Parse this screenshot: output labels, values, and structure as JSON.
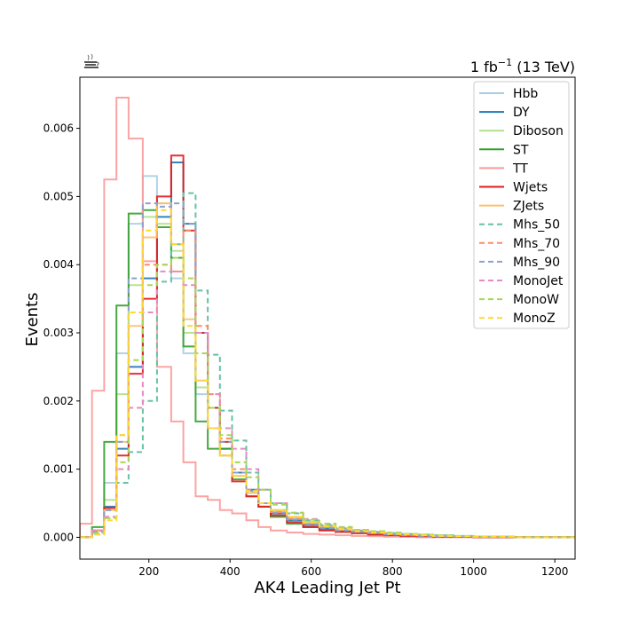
{
  "chart_data": {
    "type": "step-histogram",
    "xlabel": "AK4 Leading Jet Pt",
    "ylabel": "Events",
    "lumi_label": {
      "main": "1 fb",
      "sup": "−1",
      "tail": " (13 TeV)"
    },
    "logo_icon": "coffee-cup-icon",
    "xlim": [
      30,
      1250
    ],
    "ylim": [
      -0.00032,
      0.00675
    ],
    "xticks": [
      200,
      400,
      600,
      800,
      1000,
      1200
    ],
    "yticks": [
      0.0,
      0.001,
      0.002,
      0.003,
      0.004,
      0.005,
      0.006
    ],
    "ytick_labels": [
      "0.000",
      "0.001",
      "0.002",
      "0.003",
      "0.004",
      "0.005",
      "0.006"
    ],
    "legend_position": "top-right",
    "bin_edges": [
      30,
      60,
      90,
      120,
      150,
      185,
      220,
      255,
      285,
      315,
      345,
      375,
      405,
      440,
      470,
      500,
      540,
      580,
      620,
      660,
      700,
      740,
      780,
      820,
      860,
      900,
      950,
      1000,
      1100,
      1250
    ],
    "series": [
      {
        "name": "Hbb",
        "color": "#a6cee3",
        "dashed": false,
        "values": [
          0,
          0.0001,
          0.0008,
          0.0027,
          0.0046,
          0.0053,
          0.0049,
          0.0038,
          0.0027,
          0.0021,
          0.0016,
          0.0012,
          0.0009,
          0.00065,
          0.0005,
          0.00038,
          0.00028,
          0.0002,
          0.00015,
          0.00011,
          8e-05,
          6e-05,
          4e-05,
          3e-05,
          2e-05,
          1.5e-05,
          1e-05,
          5e-06,
          0
        ]
      },
      {
        "name": "DY",
        "color": "#1f78b4",
        "dashed": false,
        "values": [
          0,
          0.0001,
          0.00045,
          0.0013,
          0.0025,
          0.0038,
          0.0047,
          0.0055,
          0.0046,
          0.003,
          0.0019,
          0.0013,
          0.00095,
          0.0007,
          0.0005,
          0.00035,
          0.00025,
          0.00018,
          0.00013,
          0.0001,
          7e-05,
          5e-05,
          4e-05,
          3e-05,
          2e-05,
          1.5e-05,
          1e-05,
          5e-06,
          0
        ]
      },
      {
        "name": "Diboson",
        "color": "#b2df8a",
        "dashed": false,
        "values": [
          0,
          0.0001,
          0.00055,
          0.0021,
          0.0037,
          0.0047,
          0.0046,
          0.0042,
          0.003,
          0.0022,
          0.0016,
          0.0012,
          0.0009,
          0.00065,
          0.0005,
          0.0004,
          0.0003,
          0.00022,
          0.00016,
          0.00012,
          9e-05,
          7e-05,
          5e-05,
          4e-05,
          3e-05,
          2e-05,
          1.5e-05,
          1e-05,
          0
        ]
      },
      {
        "name": "ST",
        "color": "#33a02c",
        "dashed": false,
        "values": [
          0,
          0.00015,
          0.0014,
          0.0034,
          0.00475,
          0.0048,
          0.00455,
          0.0041,
          0.0028,
          0.0017,
          0.0013,
          0.0013,
          0.00085,
          0.0006,
          0.00045,
          0.0003,
          0.0002,
          0.00015,
          0.00011,
          8e-05,
          6e-05,
          4e-05,
          3e-05,
          2e-05,
          1.5e-05,
          1e-05,
          5e-06,
          0,
          0
        ]
      },
      {
        "name": "TT",
        "color": "#fb9a99",
        "dashed": false,
        "values": [
          0.0002,
          0.00215,
          0.00525,
          0.00645,
          0.00585,
          0.00405,
          0.0025,
          0.0017,
          0.0011,
          0.0006,
          0.00055,
          0.0004,
          0.00035,
          0.00025,
          0.00015,
          0.0001,
          7e-05,
          5e-05,
          4e-05,
          3e-05,
          2e-05,
          1.5e-05,
          1e-05,
          5e-06,
          0,
          0,
          0,
          0,
          0
        ]
      },
      {
        "name": "Wjets",
        "color": "#e31a1c",
        "dashed": false,
        "values": [
          0,
          0.0001,
          0.00043,
          0.0012,
          0.0024,
          0.0035,
          0.005,
          0.0056,
          0.0045,
          0.003,
          0.0019,
          0.0014,
          0.00082,
          0.0006,
          0.00045,
          0.00032,
          0.00022,
          0.00015,
          0.0001,
          8e-05,
          6e-05,
          4e-05,
          3e-05,
          2e-05,
          1.5e-05,
          1e-05,
          5e-06,
          0,
          0
        ]
      },
      {
        "name": "ZJets",
        "color": "#fdbf6f",
        "dashed": false,
        "values": [
          0,
          0.0001,
          0.0004,
          0.0014,
          0.0031,
          0.0044,
          0.0049,
          0.0043,
          0.0032,
          0.0023,
          0.0016,
          0.0012,
          0.0009,
          0.00065,
          0.0005,
          0.0004,
          0.0003,
          0.00023,
          0.00017,
          0.00013,
          0.0001,
          8e-05,
          6e-05,
          4e-05,
          3e-05,
          2e-05,
          1.5e-05,
          1e-05,
          0
        ]
      },
      {
        "name": "Mhs_50",
        "color": "#66c2a5",
        "dashed": true,
        "values": [
          0,
          5e-05,
          0.0003,
          0.0008,
          0.00125,
          0.002,
          0.00375,
          0.0043,
          0.00505,
          0.00362,
          0.00268,
          0.00186,
          0.00142,
          0.00095,
          0.0007,
          0.0005,
          0.00035,
          0.00025,
          0.00018,
          0.00013,
          0.0001,
          8e-05,
          6e-05,
          5e-05,
          4e-05,
          3e-05,
          2e-05,
          1e-05,
          0
        ]
      },
      {
        "name": "Mhs_70",
        "color": "#fc8d62",
        "dashed": true,
        "values": [
          0,
          8e-05,
          0.0004,
          0.0015,
          0.0033,
          0.004,
          0.004,
          0.0039,
          0.0045,
          0.0031,
          0.0021,
          0.00145,
          0.001,
          0.0007,
          0.0005,
          0.00037,
          0.00027,
          0.0002,
          0.00015,
          0.00011,
          8e-05,
          6e-05,
          5e-05,
          4e-05,
          3e-05,
          2e-05,
          1.5e-05,
          1e-05,
          0
        ]
      },
      {
        "name": "Mhs_90",
        "color": "#8da0cb",
        "dashed": true,
        "values": [
          0,
          8e-05,
          0.0004,
          0.0014,
          0.0038,
          0.0049,
          0.00485,
          0.0049,
          0.0046,
          0.003,
          0.0019,
          0.0014,
          0.00095,
          0.00068,
          0.0005,
          0.00036,
          0.00026,
          0.00019,
          0.00014,
          0.0001,
          8e-05,
          6e-05,
          4e-05,
          3e-05,
          2e-05,
          1.5e-05,
          1e-05,
          5e-06,
          0
        ]
      },
      {
        "name": "MonoJet",
        "color": "#e78ac3",
        "dashed": true,
        "values": [
          0,
          0.0001,
          0.0003,
          0.001,
          0.0019,
          0.0033,
          0.0039,
          0.0039,
          0.0037,
          0.003,
          0.0021,
          0.0016,
          0.0013,
          0.001,
          0.0007,
          0.0005,
          0.00036,
          0.00027,
          0.0002,
          0.00015,
          0.00011,
          8e-05,
          6e-05,
          4e-05,
          3e-05,
          2e-05,
          1.5e-05,
          1e-05,
          0
        ]
      },
      {
        "name": "MonoW",
        "color": "#a6d854",
        "dashed": true,
        "values": [
          0,
          6e-05,
          0.00028,
          0.0011,
          0.0026,
          0.0037,
          0.004,
          0.0041,
          0.0038,
          0.0027,
          0.0019,
          0.0015,
          0.0011,
          0.00088,
          0.0007,
          0.00048,
          0.00036,
          0.00026,
          0.0002,
          0.00015,
          0.00011,
          9e-05,
          7e-05,
          5e-05,
          4e-05,
          3e-05,
          2e-05,
          1e-05,
          0
        ]
      },
      {
        "name": "MonoZ",
        "color": "#ffd92f",
        "dashed": true,
        "values": [
          0,
          4e-05,
          0.00025,
          0.0015,
          0.0033,
          0.0045,
          0.0048,
          0.0043,
          0.0031,
          0.0023,
          0.0016,
          0.0012,
          0.0009,
          0.00068,
          0.0005,
          0.0004,
          0.0003,
          0.00022,
          0.00016,
          0.00012,
          9e-05,
          7e-05,
          5e-05,
          4e-05,
          3e-05,
          2e-05,
          1.5e-05,
          1e-05,
          0
        ]
      }
    ]
  }
}
